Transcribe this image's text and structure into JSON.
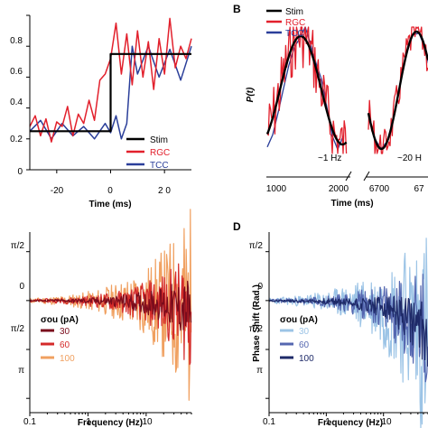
{
  "chart_data": [
    {
      "type": "line",
      "panel": "A",
      "letter": "",
      "xlabel": "Time (ms)",
      "ylabel": "",
      "xlim": [
        -30,
        30
      ],
      "ylim": [
        0,
        1
      ],
      "xticks": [
        -20,
        0,
        20
      ],
      "xtick_labels": [
        "-20",
        "0",
        "2 0"
      ],
      "yticks": [
        0,
        0.2,
        0.4,
        0.6,
        0.8,
        1
      ],
      "ytick_labels": [
        "0",
        "0.2",
        "0.4",
        "0.6",
        "0.8",
        "1"
      ],
      "legend_position": "bottom-right",
      "series": [
        {
          "name": "Stim",
          "color": "#000000",
          "x": [
            -30,
            0,
            0,
            30
          ],
          "y": [
            0.25,
            0.25,
            0.75,
            0.75
          ]
        },
        {
          "name": "RGC",
          "color": "#e2202c",
          "x": [
            -30,
            -28,
            -26,
            -24,
            -22,
            -20,
            -18,
            -16,
            -14,
            -12,
            -10,
            -8,
            -6,
            -4,
            -2,
            0,
            2,
            4,
            6,
            8,
            10,
            12,
            14,
            16,
            18,
            20,
            22,
            24,
            26,
            28,
            30
          ],
          "y": [
            0.28,
            0.35,
            0.22,
            0.33,
            0.18,
            0.31,
            0.28,
            0.41,
            0.22,
            0.36,
            0.3,
            0.45,
            0.32,
            0.58,
            0.62,
            0.72,
            0.95,
            0.62,
            0.88,
            0.55,
            0.9,
            0.6,
            0.83,
            0.52,
            0.85,
            0.62,
            0.98,
            0.66,
            0.8,
            0.72,
            0.85
          ]
        },
        {
          "name": "TCC",
          "color": "#2b3f9a",
          "x": [
            -30,
            -26,
            -22,
            -18,
            -14,
            -10,
            -6,
            -2,
            0,
            2,
            4,
            6,
            8,
            10,
            14,
            18,
            22,
            26,
            30
          ],
          "y": [
            0.25,
            0.32,
            0.2,
            0.3,
            0.22,
            0.28,
            0.2,
            0.3,
            0.24,
            0.35,
            0.2,
            0.3,
            0.8,
            0.62,
            0.8,
            0.6,
            0.78,
            0.58,
            0.8
          ]
        }
      ]
    },
    {
      "type": "line",
      "panel": "B",
      "letter": "B",
      "xlabel": "Time (ms)",
      "ylabel": "P(t)",
      "xlim": [
        1000,
        2100
      ],
      "ylim": [
        0,
        1
      ],
      "xtick_labels": [
        "1000",
        "2000",
        "6700",
        "67"
      ],
      "annotations": [
        "~1 Hz",
        "~20 H"
      ],
      "legend_position": "top-left",
      "series": [
        {
          "name": "Stim",
          "color": "#000000"
        },
        {
          "name": "RGC",
          "color": "#e2202c"
        },
        {
          "name": "TCC",
          "color": "#2b3f9a"
        }
      ]
    },
    {
      "type": "line",
      "panel": "C",
      "letter": "",
      "xlabel": "Frequency (Hz)",
      "ylabel": "",
      "xscale": "log",
      "xlim": [
        0.1,
        60
      ],
      "xticks": [
        0.1,
        1,
        10
      ],
      "xtick_labels": [
        "0.1",
        "1",
        "10"
      ],
      "yticks": [
        1.5708,
        0,
        -1.5708,
        -3.1416
      ],
      "ytick_labels": [
        "π/2",
        "0",
        "π/2",
        "π"
      ],
      "ylim": [
        -3.6,
        2.2
      ],
      "legend_title": "σou (pA)",
      "legend_position": "bottom-left",
      "series": [
        {
          "name": "30",
          "color": "#7a0c1c"
        },
        {
          "name": "60",
          "color": "#d42a2a"
        },
        {
          "name": "100",
          "color": "#f0a060"
        }
      ]
    },
    {
      "type": "line",
      "panel": "D",
      "letter": "D",
      "xlabel": "Frequency (Hz)",
      "ylabel": "Phase Shift (Rad.)",
      "xscale": "log",
      "xlim": [
        0.1,
        60
      ],
      "xticks": [
        0.1,
        1,
        10
      ],
      "xtick_labels": [
        "0.1",
        "1",
        "10"
      ],
      "yticks": [
        1.5708,
        0,
        -1.5708,
        -3.1416
      ],
      "ytick_labels": [
        "π/2",
        "0",
        "π/2",
        "π"
      ],
      "ylim": [
        -3.6,
        2.2
      ],
      "legend_title": "σou (pA)",
      "legend_position": "bottom-left",
      "series": [
        {
          "name": "30",
          "color": "#9cc4e6"
        },
        {
          "name": "60",
          "color": "#5567b0"
        },
        {
          "name": "100",
          "color": "#1e2a68"
        }
      ]
    }
  ]
}
